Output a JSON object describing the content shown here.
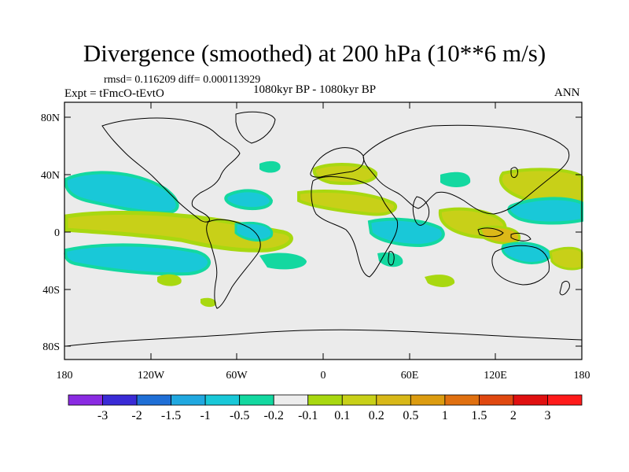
{
  "title": "Divergence (smoothed) at 200 hPa (10**6 m/s)",
  "stats": {
    "rmsd_diff": "rmsd= 0.116209 diff= 0.000113929"
  },
  "expt": "Expt = tFmcO-tEvtO",
  "period": "1080kyr BP - 1080kyr BP",
  "season": "ANN",
  "axes": {
    "y_ticks": [
      "80N",
      "40N",
      "0",
      "40S",
      "80S"
    ],
    "x_ticks": [
      "180",
      "120W",
      "60W",
      "0",
      "60E",
      "120E",
      "180"
    ]
  },
  "colorbar": {
    "labels": [
      "-3",
      "-2",
      "-1.5",
      "-1",
      "-0.5",
      "-0.2",
      "-0.1",
      "0.1",
      "0.2",
      "0.5",
      "1",
      "1.5",
      "2",
      "3"
    ],
    "colors": [
      "#8a2be2",
      "#3a2bd6",
      "#1f6fd6",
      "#20a8e0",
      "#19c8d8",
      "#13d8a0",
      "#ededed",
      "#a8d810",
      "#c8d018",
      "#d8b818",
      "#dc9c10",
      "#e07010",
      "#e04810",
      "#e01010",
      "#ff1a1a"
    ]
  },
  "colors": {
    "background": "#ffffff",
    "land_bg": "#ebebeb",
    "coast": "#000000",
    "cyan": "#19c8d8",
    "green": "#13d8a0",
    "yellow": "#a8d810",
    "olive": "#c8d018"
  }
}
